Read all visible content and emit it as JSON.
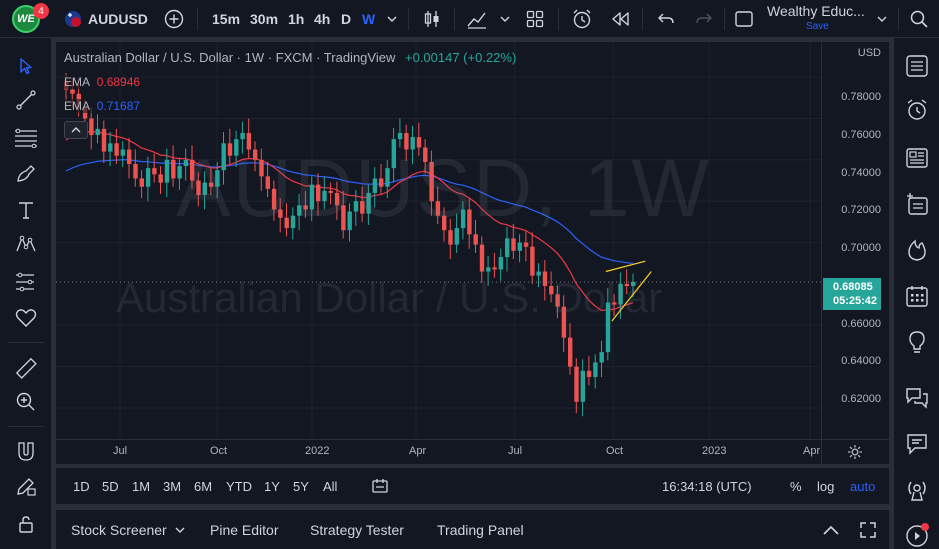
{
  "header": {
    "notification_count": "4",
    "logo_text": "WE",
    "symbol": "AUDUSD",
    "intervals": [
      "15m",
      "30m",
      "1h",
      "4h",
      "D",
      "W"
    ],
    "active_interval": "W",
    "layout_name": "Wealthy Educ...",
    "save_label": "Save"
  },
  "chart": {
    "title": "Australian Dollar / U.S. Dollar · 1W · FXCM · TradingView",
    "change": "+0.00147 (+0.22%)",
    "watermark_symbol": "AUDUSD, 1W",
    "watermark_name": "Australian Dollar / U.S. Dollar",
    "ema1_label": "EMA",
    "ema1_value": "0.68946",
    "ema1_color": "#f23645",
    "ema2_label": "EMA",
    "ema2_value": "0.71687",
    "ema2_color": "#2962ff",
    "currency": "USD",
    "price_levels": [
      "0.78000",
      "0.76000",
      "0.74000",
      "0.72000",
      "0.70000",
      "0.66000",
      "0.64000",
      "0.62000"
    ],
    "current_price": "0.68085",
    "countdown": "05:25:42",
    "time_labels": [
      "Jul",
      "Oct",
      "2022",
      "Apr",
      "Jul",
      "Oct",
      "2023",
      "Apr"
    ],
    "up_color": "#26a69a",
    "down_color": "#ef5350",
    "channel_color": "#f5d328"
  },
  "chart_data": {
    "type": "candlestick",
    "title": "Australian Dollar / U.S. Dollar · 1W · FXCM · TradingView",
    "ylim": [
      0.605,
      0.797
    ],
    "y_ticks": [
      0.62,
      0.64,
      0.66,
      0.7,
      0.72,
      0.74,
      0.76,
      0.78
    ],
    "x_ticks": [
      "Jul",
      "Oct",
      "2022",
      "Apr",
      "Jul",
      "Oct",
      "2023",
      "Apr"
    ],
    "closes": [
      0.774,
      0.772,
      0.765,
      0.76,
      0.752,
      0.755,
      0.744,
      0.748,
      0.742,
      0.745,
      0.738,
      0.731,
      0.727,
      0.736,
      0.733,
      0.729,
      0.74,
      0.731,
      0.737,
      0.74,
      0.73,
      0.723,
      0.729,
      0.727,
      0.735,
      0.748,
      0.742,
      0.75,
      0.753,
      0.745,
      0.74,
      0.732,
      0.726,
      0.716,
      0.712,
      0.707,
      0.713,
      0.718,
      0.716,
      0.728,
      0.72,
      0.725,
      0.724,
      0.718,
      0.706,
      0.715,
      0.72,
      0.714,
      0.724,
      0.731,
      0.727,
      0.736,
      0.75,
      0.753,
      0.745,
      0.751,
      0.746,
      0.739,
      0.72,
      0.713,
      0.706,
      0.699,
      0.707,
      0.716,
      0.704,
      0.699,
      0.686,
      0.688,
      0.687,
      0.693,
      0.702,
      0.696,
      0.7,
      0.698,
      0.684,
      0.686,
      0.679,
      0.675,
      0.669,
      0.654,
      0.64,
      0.623,
      0.638,
      0.635,
      0.642,
      0.647,
      0.671,
      0.67,
      0.68,
      0.679,
      0.681
    ],
    "ema_short": {
      "name": "EMA",
      "last": 0.68946
    },
    "ema_long": {
      "name": "EMA",
      "last": 0.71687
    },
    "last_price": 0.68085,
    "grid": true
  },
  "timescale": {
    "ranges": [
      "1D",
      "5D",
      "1M",
      "3M",
      "6M",
      "YTD",
      "1Y",
      "5Y",
      "All"
    ],
    "clock": "16:34:18 (UTC)",
    "percent": "%",
    "log": "log",
    "auto": "auto"
  },
  "footer": {
    "tabs": [
      "Stock Screener",
      "Pine Editor",
      "Strategy Tester",
      "Trading Panel"
    ]
  }
}
